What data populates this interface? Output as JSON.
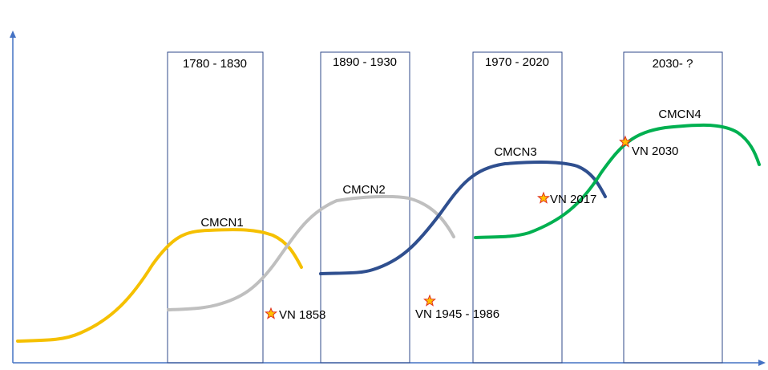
{
  "periods": [
    "1780 - 1830",
    "1890 - 1930",
    "1970 - 2020",
    "2030- ?"
  ],
  "curves": [
    "CMCN1",
    "CMCN2",
    "CMCN3",
    "CMCN4"
  ],
  "markers": [
    "VN 1858",
    "VN 1945 - 1986",
    "VN 2017",
    "VN 2030"
  ]
}
